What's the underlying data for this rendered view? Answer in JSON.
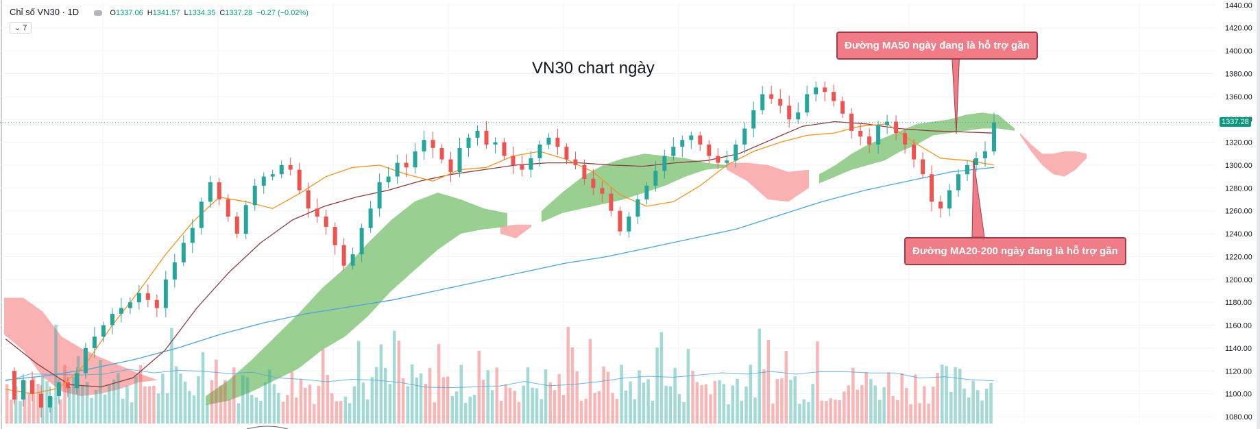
{
  "legend": {
    "symbol": "Chỉ số VN30 · 1D",
    "open_label": "O",
    "open": "1337.06",
    "high_label": "H",
    "high": "1341.57",
    "low_label": "L",
    "low": "1334.35",
    "close_label": "C",
    "close": "1337.28",
    "change": "−0.27 (−0.02%)",
    "indicator_toggle": "⌄ 7"
  },
  "title": "VN30 chart ngày",
  "callouts": {
    "ma50": "Đường MA50 ngày đang là hỗ trợ gần",
    "ma20_200": "Đường MA20-200 ngày đang là hỗ trợ gần"
  },
  "last_price_label": "1337.28",
  "colors": {
    "up": "#26a69a",
    "down": "#ef5350",
    "ma20": "#f7931a",
    "ma50": "#8b3a3a",
    "ma200": "#4aa3df",
    "cloud_bull": "#8fca86",
    "cloud_bear": "#f8a3a3",
    "callout_bg": "#ef7c86"
  },
  "chart_data": {
    "type": "candlestick",
    "title": "VN30 chart ngày",
    "timeframe": "1D",
    "y_axis_ticks": [
      "1440.00",
      "1420.00",
      "1400.00",
      "1380.00",
      "1360.00",
      "1340.00",
      "1320.00",
      "1300.00",
      "1280.00",
      "1260.00",
      "1240.00",
      "1220.00",
      "1200.00",
      "1180.00",
      "1160.00",
      "1140.00",
      "1120.00",
      "1100.00",
      "1080.00"
    ],
    "ylim": [
      1074,
      1442
    ],
    "series": [
      {
        "name": "VN30",
        "approx_path": [
          1120,
          1095,
          1112,
          1100,
          1088,
          1098,
          1110,
          1105,
          1118,
          1140,
          1150,
          1160,
          1170,
          1175,
          1180,
          1188,
          1182,
          1175,
          1200,
          1215,
          1232,
          1245,
          1268,
          1285,
          1270,
          1255,
          1240,
          1265,
          1282,
          1290,
          1292,
          1300,
          1296,
          1278,
          1262,
          1255,
          1246,
          1230,
          1212,
          1222,
          1245,
          1262,
          1285,
          1290,
          1302,
          1298,
          1312,
          1322,
          1315,
          1305,
          1294,
          1315,
          1324,
          1330,
          1318,
          1320,
          1308,
          1300,
          1296,
          1306,
          1318,
          1324,
          1316,
          1305,
          1300,
          1288,
          1280,
          1275,
          1260,
          1242,
          1255,
          1270,
          1282,
          1295,
          1308,
          1316,
          1322,
          1326,
          1318,
          1308,
          1302,
          1304,
          1318,
          1332,
          1348,
          1362,
          1358,
          1352,
          1340,
          1346,
          1362,
          1368,
          1364,
          1356,
          1345,
          1330,
          1325,
          1318,
          1335,
          1338,
          1328,
          1318,
          1305,
          1292,
          1268,
          1262,
          1278,
          1292,
          1300,
          1306,
          1312,
          1337.28
        ]
      },
      {
        "name": "MA20",
        "approx_path": [
          1104,
          1100,
          1105,
          1126,
          1160,
          1190,
          1222,
          1250,
          1272,
          1268,
          1262,
          1275,
          1290,
          1298,
          1300,
          1292,
          1286,
          1296,
          1298,
          1308,
          1312,
          1305,
          1294,
          1274,
          1264,
          1268,
          1282,
          1300,
          1312,
          1320,
          1326,
          1328,
          1334,
          1336,
          1320,
          1306,
          1304,
          1300
        ]
      },
      {
        "name": "MA50",
        "approx_path": [
          1148,
          1126,
          1108,
          1106,
          1114,
          1138,
          1175,
          1206,
          1232,
          1252,
          1264,
          1272,
          1278,
          1286,
          1292,
          1296,
          1300,
          1302,
          1302,
          1300,
          1299,
          1302,
          1304,
          1310,
          1322,
          1334,
          1338,
          1336,
          1332,
          1330,
          1329,
          1328
        ]
      },
      {
        "name": "MA200",
        "approx_path": [
          1112,
          1116,
          1122,
          1130,
          1140,
          1152,
          1162,
          1170,
          1176,
          1182,
          1190,
          1198,
          1206,
          1214,
          1220,
          1228,
          1236,
          1244,
          1256,
          1268,
          1278,
          1286,
          1294,
          1298
        ]
      }
    ],
    "volume": "relative bars along bottom (green = up day, red = down day) with a light-blue volume average line",
    "ichimoku_cloud": "green bullish kumo and red bearish kumo projected behind/ahead of price"
  }
}
